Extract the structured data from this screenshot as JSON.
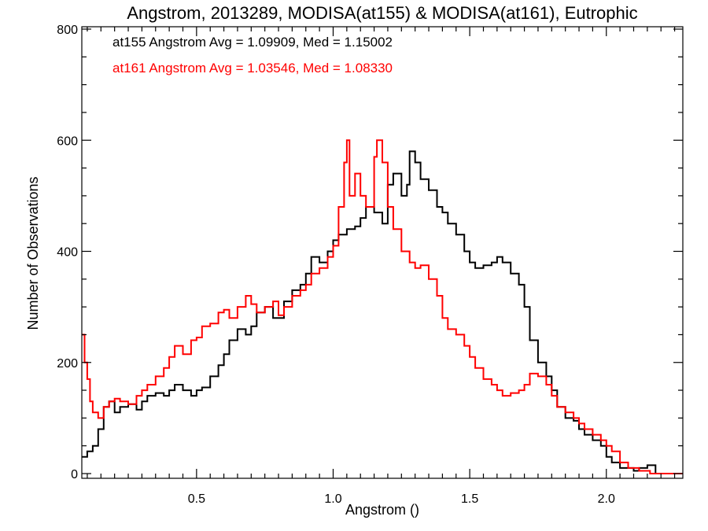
{
  "chart_data": {
    "type": "line",
    "style": "step-histogram",
    "title": "Angstrom, 2013289, MODISA(at155) & MODISA(at161), Eutrophic",
    "xlabel": "Angstrom ()",
    "ylabel": "Number of Observations",
    "xlim": [
      0.08,
      2.28
    ],
    "ylim": [
      0,
      800
    ],
    "xticks": [
      0.5,
      1.0,
      1.5,
      2.0
    ],
    "xtick_labels": [
      "0.5",
      "1.0",
      "1.5",
      "2.0"
    ],
    "yticks": [
      0,
      200,
      400,
      600,
      800
    ],
    "ytick_labels": [
      "0",
      "200",
      "400",
      "600",
      "800"
    ],
    "grid": false,
    "annotations": [
      {
        "text": "at155 Angstrom Avg = 1.09909, Med = 1.15002",
        "color": "#000000"
      },
      {
        "text": "at161 Angstrom Avg = 1.03546, Med = 1.08330",
        "color": "#ff0000"
      }
    ],
    "series": [
      {
        "color": "#000000",
        "x": [
          0.08,
          0.1,
          0.12,
          0.14,
          0.16,
          0.18,
          0.2,
          0.22,
          0.25,
          0.28,
          0.3,
          0.32,
          0.35,
          0.38,
          0.4,
          0.42,
          0.45,
          0.48,
          0.5,
          0.52,
          0.55,
          0.58,
          0.6,
          0.62,
          0.65,
          0.68,
          0.7,
          0.72,
          0.75,
          0.78,
          0.8,
          0.82,
          0.85,
          0.88,
          0.9,
          0.92,
          0.95,
          0.98,
          1.0,
          1.02,
          1.05,
          1.08,
          1.1,
          1.12,
          1.15,
          1.18,
          1.2,
          1.22,
          1.25,
          1.27,
          1.28,
          1.3,
          1.32,
          1.35,
          1.38,
          1.4,
          1.42,
          1.45,
          1.48,
          1.5,
          1.52,
          1.55,
          1.58,
          1.6,
          1.62,
          1.65,
          1.68,
          1.7,
          1.72,
          1.75,
          1.78,
          1.8,
          1.82,
          1.85,
          1.88,
          1.9,
          1.92,
          1.95,
          1.98,
          2.0,
          2.02,
          2.05,
          2.08,
          2.1,
          2.12,
          2.15,
          2.18,
          2.22,
          2.26
        ],
        "values": [
          30,
          40,
          50,
          80,
          120,
          130,
          110,
          120,
          125,
          115,
          130,
          140,
          145,
          140,
          150,
          160,
          150,
          140,
          150,
          155,
          175,
          195,
          215,
          240,
          260,
          250,
          265,
          290,
          300,
          280,
          280,
          310,
          330,
          340,
          360,
          390,
          380,
          400,
          420,
          430,
          440,
          445,
          460,
          480,
          470,
          450,
          520,
          540,
          500,
          520,
          580,
          560,
          530,
          510,
          480,
          470,
          450,
          430,
          400,
          380,
          370,
          375,
          380,
          390,
          380,
          360,
          340,
          300,
          240,
          200,
          175,
          150,
          120,
          100,
          95,
          80,
          70,
          60,
          50,
          30,
          20,
          10,
          10,
          5,
          10,
          15,
          0,
          0,
          0
        ]
      },
      {
        "color": "#ff0000",
        "x": [
          0.08,
          0.09,
          0.1,
          0.11,
          0.12,
          0.14,
          0.16,
          0.18,
          0.2,
          0.22,
          0.25,
          0.28,
          0.3,
          0.32,
          0.35,
          0.38,
          0.4,
          0.42,
          0.45,
          0.48,
          0.5,
          0.52,
          0.55,
          0.58,
          0.6,
          0.62,
          0.65,
          0.68,
          0.7,
          0.72,
          0.75,
          0.78,
          0.8,
          0.82,
          0.85,
          0.88,
          0.9,
          0.92,
          0.95,
          0.98,
          1.0,
          1.02,
          1.04,
          1.05,
          1.06,
          1.08,
          1.1,
          1.12,
          1.15,
          1.16,
          1.18,
          1.2,
          1.22,
          1.25,
          1.28,
          1.3,
          1.32,
          1.35,
          1.38,
          1.4,
          1.42,
          1.45,
          1.48,
          1.5,
          1.52,
          1.55,
          1.58,
          1.6,
          1.62,
          1.65,
          1.68,
          1.7,
          1.72,
          1.75,
          1.78,
          1.8,
          1.82,
          1.85,
          1.88,
          1.9,
          1.92,
          1.95,
          1.98,
          2.0,
          2.02,
          2.05,
          2.08,
          2.12,
          2.16,
          2.2
        ],
        "values": [
          250,
          200,
          170,
          130,
          110,
          100,
          120,
          130,
          135,
          130,
          125,
          140,
          150,
          160,
          175,
          190,
          210,
          230,
          215,
          240,
          245,
          265,
          270,
          290,
          295,
          280,
          300,
          320,
          305,
          290,
          300,
          310,
          285,
          300,
          320,
          330,
          340,
          360,
          370,
          390,
          410,
          480,
          560,
          600,
          500,
          540,
          500,
          480,
          570,
          600,
          560,
          480,
          440,
          400,
          380,
          370,
          375,
          350,
          320,
          280,
          260,
          250,
          230,
          210,
          190,
          170,
          160,
          150,
          140,
          145,
          150,
          160,
          180,
          175,
          160,
          140,
          120,
          110,
          100,
          90,
          80,
          70,
          60,
          50,
          40,
          20,
          10,
          5,
          0,
          0
        ]
      }
    ]
  }
}
